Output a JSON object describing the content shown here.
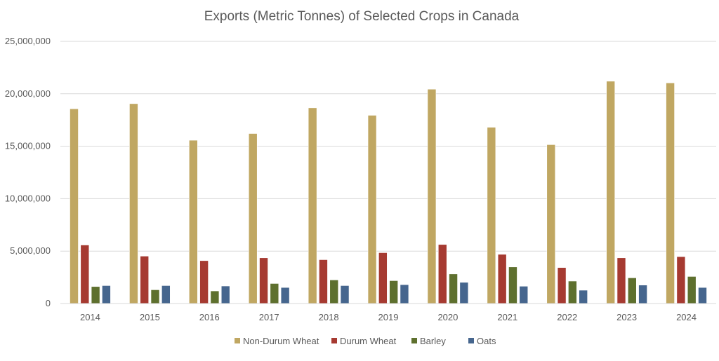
{
  "chart_data": {
    "type": "bar",
    "title": "Exports (Metric Tonnes) of Selected Crops in Canada",
    "xlabel": "",
    "ylabel": "",
    "ylim": [
      0,
      25000000
    ],
    "yticks": [
      0,
      5000000,
      10000000,
      15000000,
      20000000,
      25000000
    ],
    "ytick_labels": [
      "0",
      "5,000,000",
      "10,000,000",
      "15,000,000",
      "20,000,000",
      "25,000,000"
    ],
    "grid": true,
    "legend_position": "bottom",
    "categories": [
      "2014",
      "2015",
      "2016",
      "2017",
      "2018",
      "2019",
      "2020",
      "2021",
      "2022",
      "2023",
      "2024"
    ],
    "series": [
      {
        "name": "Non-Durum Wheat",
        "color": "#C0A762",
        "values": [
          18570000,
          19060000,
          15570000,
          16210000,
          18660000,
          17950000,
          20440000,
          16810000,
          15150000,
          21200000,
          21040000
        ]
      },
      {
        "name": "Durum Wheat",
        "color": "#A63A31",
        "values": [
          5580000,
          4520000,
          4090000,
          4360000,
          4180000,
          4850000,
          5630000,
          4690000,
          3430000,
          4360000,
          4470000
        ]
      },
      {
        "name": "Barley",
        "color": "#5E702E",
        "values": [
          1620000,
          1310000,
          1200000,
          1910000,
          2250000,
          2180000,
          2820000,
          3490000,
          2140000,
          2450000,
          2580000
        ]
      },
      {
        "name": "Oats",
        "color": "#46668E",
        "values": [
          1710000,
          1710000,
          1670000,
          1530000,
          1710000,
          1800000,
          2020000,
          1650000,
          1270000,
          1760000,
          1530000
        ]
      }
    ]
  }
}
